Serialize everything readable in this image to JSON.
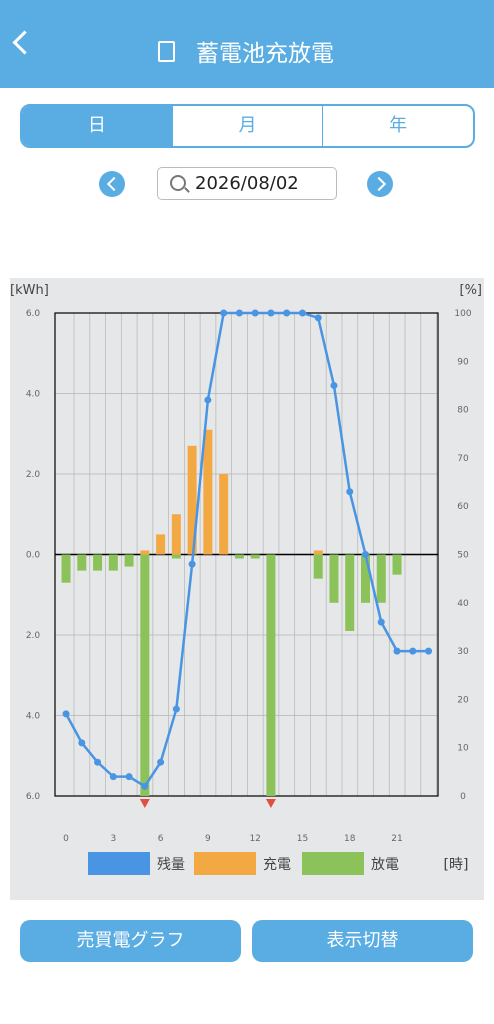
{
  "header": {
    "title": "蓄電池充放電"
  },
  "tabs": [
    "日",
    "月",
    "年"
  ],
  "date": "2026/08/02",
  "buttons": [
    "売買電グラフ",
    "表示切替"
  ],
  "chart_data": {
    "type": "bar",
    "y_label": "[kWh]",
    "y2_label": "[%]",
    "x_label": "[時]",
    "x": [
      0,
      1,
      2,
      3,
      4,
      5,
      6,
      7,
      8,
      9,
      10,
      11,
      12,
      13,
      14,
      15,
      16,
      17,
      18,
      19,
      20,
      21,
      22,
      23
    ],
    "xlim": [
      -0.7,
      23.6
    ],
    "xticks": [
      0,
      3,
      6,
      9,
      12,
      15,
      18,
      21
    ],
    "ylim": [
      -6,
      6
    ],
    "yticks": [
      {
        "value": 6,
        "label": "6.0"
      },
      {
        "value": 4,
        "label": "4.0"
      },
      {
        "value": 2,
        "label": "2.0"
      },
      {
        "value": 0,
        "label": "0.0"
      },
      {
        "value": -2,
        "label": "2.0"
      },
      {
        "value": -4,
        "label": "4.0"
      },
      {
        "value": -6,
        "label": "6.0"
      }
    ],
    "y2lim": [
      0,
      100
    ],
    "y2ticks": [
      0,
      10,
      20,
      30,
      40,
      50,
      60,
      70,
      80,
      90,
      100
    ],
    "grid": true,
    "series": [
      {
        "name": "残量",
        "type": "line",
        "axis": "y2",
        "color": "#4a94e4",
        "values": [
          17,
          11,
          7,
          4,
          4,
          2,
          7,
          18,
          48,
          82,
          100,
          100,
          100,
          100,
          100,
          100,
          99,
          85,
          63,
          50,
          36,
          30,
          30,
          30
        ]
      },
      {
        "name": "充電",
        "type": "bar",
        "color": "#f2a944",
        "values": [
          0,
          0,
          0,
          0,
          0,
          0.1,
          0.5,
          1.0,
          2.7,
          3.1,
          2.0,
          0,
          0,
          0,
          0,
          0,
          0.1,
          0,
          0,
          0,
          0,
          0,
          0,
          0
        ]
      },
      {
        "name": "放電",
        "type": "bar",
        "color": "#8cc25a",
        "values": [
          -0.7,
          -0.4,
          -0.4,
          -0.4,
          -0.3,
          -6.0,
          0,
          -0.1,
          0,
          0,
          0,
          -0.1,
          -0.1,
          -6.0,
          0,
          0,
          -0.6,
          -1.2,
          -1.9,
          -1.2,
          -1.2,
          -0.5,
          0,
          0
        ]
      }
    ],
    "markers": [
      5,
      13
    ],
    "marker_color": "#e05040"
  }
}
